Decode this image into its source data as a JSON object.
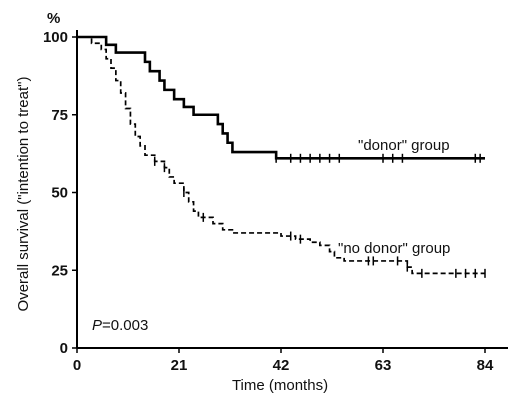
{
  "chart_data": {
    "type": "line",
    "step": true,
    "xlabel": "Time (months)",
    "ylabel": "Overall survival (\"intention to treat\")",
    "yunit": "%",
    "xlim": [
      0,
      84
    ],
    "ylim": [
      0,
      100
    ],
    "xticks": [
      0,
      21,
      42,
      63,
      84
    ],
    "yticks": [
      0,
      25,
      50,
      75,
      100
    ],
    "annotation": {
      "prefix": "P",
      "text": "=0.003"
    },
    "series": [
      {
        "name": "\"donor\" group",
        "color": "#000000",
        "dash": "solid",
        "points": [
          [
            0,
            100
          ],
          [
            5,
            100
          ],
          [
            6,
            97.5
          ],
          [
            8,
            95
          ],
          [
            13,
            95
          ],
          [
            14,
            92
          ],
          [
            15,
            89
          ],
          [
            17,
            86
          ],
          [
            18,
            83
          ],
          [
            20,
            80
          ],
          [
            22,
            77.5
          ],
          [
            24,
            75
          ],
          [
            28,
            75
          ],
          [
            29,
            72
          ],
          [
            30,
            69
          ],
          [
            31,
            66
          ],
          [
            32,
            63
          ],
          [
            40,
            63
          ],
          [
            41,
            61
          ],
          [
            84,
            61
          ]
        ],
        "censored": [
          41,
          44,
          46,
          48,
          50,
          52,
          54,
          63,
          65,
          67,
          82,
          83
        ]
      },
      {
        "name": "\"no donor\" group",
        "color": "#000000",
        "dash": "dashed",
        "points": [
          [
            0,
            100
          ],
          [
            3,
            98
          ],
          [
            5,
            96
          ],
          [
            6,
            93
          ],
          [
            7,
            90
          ],
          [
            8,
            86
          ],
          [
            9,
            82
          ],
          [
            10,
            77
          ],
          [
            11,
            72
          ],
          [
            12,
            68
          ],
          [
            13,
            65
          ],
          [
            14,
            62
          ],
          [
            16,
            60
          ],
          [
            18,
            58
          ],
          [
            19,
            55
          ],
          [
            20,
            53
          ],
          [
            22,
            50
          ],
          [
            23,
            47
          ],
          [
            24,
            44
          ],
          [
            25,
            42
          ],
          [
            28,
            40
          ],
          [
            30,
            38
          ],
          [
            32,
            37
          ],
          [
            40,
            37
          ],
          [
            42,
            36
          ],
          [
            45,
            35
          ],
          [
            48,
            34
          ],
          [
            50,
            33
          ],
          [
            52,
            31
          ],
          [
            53,
            29
          ],
          [
            55,
            28
          ],
          [
            67,
            28
          ],
          [
            68,
            26
          ],
          [
            69,
            24
          ],
          [
            84,
            24
          ]
        ],
        "censored": [
          16,
          18,
          22,
          26,
          44,
          46,
          60,
          61,
          66,
          68,
          71,
          78,
          80,
          82,
          84
        ]
      }
    ]
  }
}
